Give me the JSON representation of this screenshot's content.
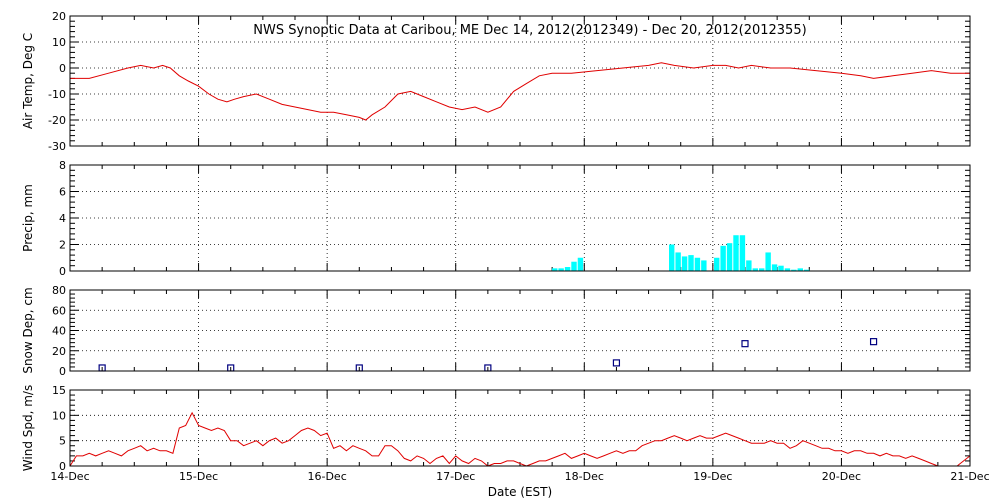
{
  "title": "NWS Synoptic Data at Caribou, ME   Dec 14, 2012(2012349) - Dec 20, 2012(2012355)",
  "xlabel": "Date (EST)",
  "x_tick_labels": [
    "14-Dec",
    "15-Dec",
    "16-Dec",
    "17-Dec",
    "18-Dec",
    "19-Dec",
    "20-Dec",
    "21-Dec"
  ],
  "colors": {
    "temp": "#e00000",
    "precip": "#00ffff",
    "snow": "#000080",
    "wind": "#e00000",
    "grid": "#000000"
  },
  "chart_data": [
    {
      "type": "line",
      "ylabel": "Air Temp, Deg C",
      "xlim": [
        0,
        7
      ],
      "ylim": [
        -30,
        20
      ],
      "yticks": [
        -30,
        -20,
        -10,
        0,
        10,
        20
      ],
      "grid": true,
      "series": [
        {
          "x": [
            0,
            0.15,
            0.3,
            0.45,
            0.55,
            0.65,
            0.72,
            0.78,
            0.85,
            0.92,
            1.0,
            1.08,
            1.15,
            1.22,
            1.28,
            1.35,
            1.45,
            1.55,
            1.65,
            1.75,
            1.85,
            1.95,
            2.05,
            2.15,
            2.25,
            2.3,
            2.35,
            2.45,
            2.55,
            2.65,
            2.75,
            2.85,
            2.95,
            3.05,
            3.15,
            3.25,
            3.35,
            3.45,
            3.55,
            3.65,
            3.75,
            3.9,
            4.1,
            4.3,
            4.5,
            4.6,
            4.7,
            4.85,
            5.0,
            5.1,
            5.2,
            5.3,
            5.45,
            5.6,
            5.8,
            6.0,
            6.15,
            6.25,
            6.4,
            6.55,
            6.7,
            6.85,
            7.0
          ],
          "y": [
            -4,
            -4,
            -2,
            0,
            1,
            0,
            1,
            0,
            -3,
            -5,
            -7,
            -10,
            -12,
            -13,
            -12,
            -11,
            -10,
            -12,
            -14,
            -15,
            -16,
            -17,
            -17,
            -18,
            -19,
            -20,
            -18,
            -15,
            -10,
            -9,
            -11,
            -13,
            -15,
            -16,
            -15,
            -17,
            -15,
            -9,
            -6,
            -3,
            -2,
            -2,
            -1,
            0,
            1,
            2,
            1,
            0,
            1,
            1,
            0,
            1,
            0,
            0,
            -1,
            -2,
            -3,
            -4,
            -3,
            -2,
            -1,
            -2,
            -2
          ]
        }
      ]
    },
    {
      "type": "bar",
      "ylabel": "Precip, mm",
      "xlim": [
        0,
        7
      ],
      "ylim": [
        0,
        8
      ],
      "yticks": [
        0,
        2,
        4,
        6,
        8
      ],
      "grid": true,
      "bar_width": 0.042,
      "series": [
        {
          "x": [
            3.77,
            3.82,
            3.87,
            3.92,
            3.97,
            4.68,
            4.73,
            4.78,
            4.83,
            4.88,
            4.93,
            5.03,
            5.08,
            5.13,
            5.18,
            5.23,
            5.28,
            5.33,
            5.38,
            5.43,
            5.48,
            5.53,
            5.58,
            5.63,
            5.68,
            5.73
          ],
          "y": [
            0.2,
            0.2,
            0.3,
            0.7,
            1.0,
            2.0,
            1.4,
            1.1,
            1.2,
            1.0,
            0.8,
            1.0,
            1.9,
            2.1,
            2.7,
            2.7,
            0.8,
            0.2,
            0.2,
            1.4,
            0.5,
            0.4,
            0.2,
            0.1,
            0.2,
            0.1
          ]
        }
      ]
    },
    {
      "type": "scatter",
      "ylabel": "Snow Dep, cm",
      "xlim": [
        0,
        7
      ],
      "ylim": [
        0,
        80
      ],
      "yticks": [
        0,
        20,
        40,
        60,
        80
      ],
      "grid": true,
      "series": [
        {
          "x": [
            0.25,
            1.25,
            2.25,
            3.25,
            4.25,
            5.25,
            6.25
          ],
          "y": [
            3,
            3,
            3,
            3,
            8,
            27,
            29
          ]
        }
      ]
    },
    {
      "type": "line",
      "ylabel": "Wind Spd, m/s",
      "xlim": [
        0,
        7
      ],
      "ylim": [
        0,
        15
      ],
      "yticks": [
        0,
        5,
        10,
        15
      ],
      "grid": true,
      "series": [
        {
          "x": [
            0,
            0.05,
            0.1,
            0.15,
            0.2,
            0.25,
            0.3,
            0.35,
            0.4,
            0.45,
            0.5,
            0.55,
            0.6,
            0.65,
            0.7,
            0.75,
            0.8,
            0.85,
            0.9,
            0.95,
            1.0,
            1.05,
            1.1,
            1.15,
            1.2,
            1.25,
            1.3,
            1.35,
            1.4,
            1.45,
            1.5,
            1.55,
            1.6,
            1.65,
            1.7,
            1.75,
            1.8,
            1.85,
            1.9,
            1.95,
            2.0,
            2.05,
            2.1,
            2.15,
            2.2,
            2.25,
            2.3,
            2.35,
            2.4,
            2.45,
            2.5,
            2.55,
            2.6,
            2.65,
            2.7,
            2.75,
            2.8,
            2.85,
            2.9,
            2.95,
            3.0,
            3.05,
            3.1,
            3.15,
            3.2,
            3.25,
            3.3,
            3.35,
            3.4,
            3.45,
            3.5,
            3.55,
            3.6,
            3.65,
            3.7,
            3.75,
            3.8,
            3.85,
            3.9,
            3.95,
            4.0,
            4.05,
            4.1,
            4.15,
            4.2,
            4.25,
            4.3,
            4.35,
            4.4,
            4.45,
            4.5,
            4.55,
            4.6,
            4.65,
            4.7,
            4.75,
            4.8,
            4.85,
            4.9,
            4.95,
            5.0,
            5.05,
            5.1,
            5.15,
            5.2,
            5.25,
            5.3,
            5.35,
            5.4,
            5.45,
            5.5,
            5.55,
            5.6,
            5.65,
            5.7,
            5.75,
            5.8,
            5.85,
            5.9,
            5.95,
            6.0,
            6.05,
            6.1,
            6.15,
            6.2,
            6.25,
            6.3,
            6.35,
            6.4,
            6.45,
            6.5,
            6.55,
            6.6,
            6.65,
            6.7,
            6.75,
            6.8,
            6.85,
            6.9,
            6.95,
            7.0
          ],
          "y": [
            0,
            2,
            2,
            2.5,
            2,
            2.5,
            3,
            2.5,
            2,
            3,
            3.5,
            4,
            3,
            3.5,
            3,
            3,
            2.5,
            7.5,
            8,
            10.5,
            8,
            7.5,
            7,
            7.5,
            7,
            5,
            5,
            4,
            4.5,
            5,
            4,
            5,
            5.5,
            4.5,
            5,
            6,
            7,
            7.5,
            7,
            6,
            6.5,
            3.5,
            4,
            3,
            4,
            3.5,
            3,
            2,
            2,
            4,
            4,
            3,
            1.5,
            1,
            2,
            1.5,
            0.5,
            1.5,
            2,
            0.5,
            2,
            1,
            0.5,
            1.5,
            1,
            0,
            0.5,
            0.5,
            1,
            1,
            0.5,
            0,
            0.5,
            1,
            1,
            1.5,
            2,
            2.5,
            1.5,
            2,
            2.5,
            2,
            1.5,
            2,
            2.5,
            3,
            2.5,
            3,
            3,
            4,
            4.5,
            5,
            5,
            5.5,
            6,
            5.5,
            5,
            5.5,
            6,
            5.5,
            5.5,
            6,
            6.5,
            6,
            5.5,
            5,
            4.5,
            4.5,
            4.5,
            5,
            4.5,
            4.5,
            3.5,
            4,
            5,
            4.5,
            4,
            3.5,
            3.5,
            3,
            3,
            2.5,
            3,
            3,
            2.5,
            2.5,
            2,
            2.5,
            2,
            2,
            1.5,
            2,
            1.5,
            1,
            0.5,
            0,
            0,
            0,
            0,
            1,
            2
          ]
        }
      ]
    }
  ]
}
